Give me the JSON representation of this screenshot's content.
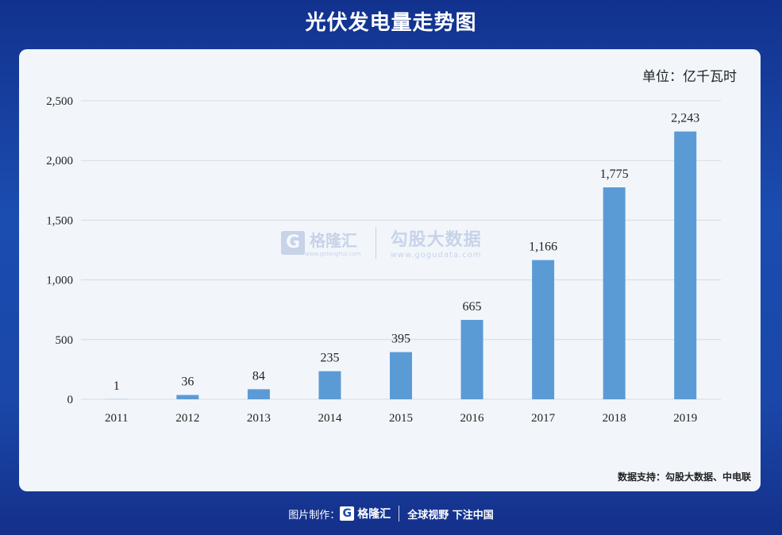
{
  "header": {
    "title": "光伏发电量走势图"
  },
  "unit_label": "单位：亿千瓦时",
  "source_label": "数据支持：勾股大数据、中电联",
  "watermark": {
    "logo_letter": "G",
    "brand": "格隆汇",
    "brand_url": "www.gelonghui.com",
    "brand2": "勾股大数据",
    "brand2_url": "www.gogudata.com"
  },
  "footer": {
    "made_by": "图片制作：",
    "logo_letter": "G",
    "brand": "格隆汇",
    "slogan": "全球视野 下注中国"
  },
  "colors": {
    "bar": "#5b9bd5",
    "grid": "#d9d9d9",
    "panel": "#f2f6fb"
  },
  "chart_data": {
    "type": "bar",
    "categories": [
      "2011",
      "2012",
      "2013",
      "2014",
      "2015",
      "2016",
      "2017",
      "2018",
      "2019"
    ],
    "values": [
      1,
      36,
      84,
      235,
      395,
      665,
      1166,
      1775,
      2243
    ],
    "value_labels": [
      "1",
      "36",
      "84",
      "235",
      "395",
      "665",
      "1,166",
      "1,775",
      "2,243"
    ],
    "title": "光伏发电量走势图",
    "ylabel": "单位：亿千瓦时",
    "ylim": [
      0,
      2500
    ],
    "yticks": [
      0,
      500,
      1000,
      1500,
      2000,
      2500
    ],
    "ytick_labels": [
      "0",
      "500",
      "1,000",
      "1,500",
      "2,000",
      "2,500"
    ],
    "grid": true,
    "legend": "none"
  }
}
